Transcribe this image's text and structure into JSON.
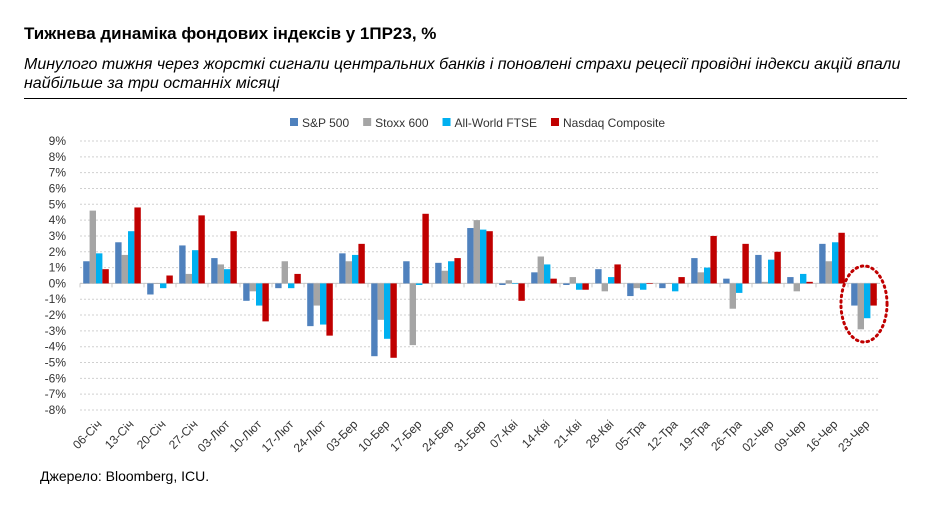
{
  "title": "Тижнева динаміка фондових індексів у 1ПР23, %",
  "subtitle": "Минулого тижня через жорсткі сигнали центральних банків і поновлені страхи рецесії провідні індекси акцій  впали найбільше за три останніх місяці",
  "source": "Джерело: Bloomberg, ICU.",
  "chart_data": {
    "type": "bar",
    "title": "",
    "xlabel": "",
    "ylabel": "",
    "ylim": [
      -8,
      9
    ],
    "y_ticks": [
      "9%",
      "8%",
      "7%",
      "6%",
      "5%",
      "4%",
      "3%",
      "2%",
      "1%",
      "0%",
      "-1%",
      "-2%",
      "-3%",
      "-4%",
      "-5%",
      "-6%",
      "-7%",
      "-8%"
    ],
    "grid": true,
    "legend_position": "top",
    "categories": [
      "06-Січ",
      "13-Січ",
      "20-Січ",
      "27-Січ",
      "03-Лют",
      "10-Лют",
      "17-Лют",
      "24-Лют",
      "03-Бер",
      "10-Бер",
      "17-Бер",
      "24-Бер",
      "31-Бер",
      "07-Кві",
      "14-Кві",
      "21-Кві",
      "28-Кві",
      "05-Тра",
      "12-Тра",
      "19-Тра",
      "26-Тра",
      "02-Чер",
      "09-Чер",
      "16-Чер",
      "23-Чер"
    ],
    "series": [
      {
        "name": "S&P 500",
        "color": "#4f81bd",
        "values": [
          1.4,
          2.6,
          -0.7,
          2.4,
          1.6,
          -1.1,
          -0.3,
          -2.7,
          1.9,
          -4.6,
          1.4,
          1.3,
          3.5,
          -0.1,
          0.7,
          -0.1,
          0.9,
          -0.8,
          -0.3,
          1.6,
          0.3,
          1.8,
          0.4,
          2.5,
          -1.4
        ]
      },
      {
        "name": "Stoxx 600",
        "color": "#a5a5a5",
        "values": [
          4.6,
          1.8,
          0.0,
          0.6,
          1.2,
          -0.5,
          1.4,
          -1.4,
          1.4,
          -2.3,
          -3.9,
          0.8,
          4.0,
          0.2,
          1.7,
          0.4,
          -0.5,
          -0.3,
          0.0,
          0.7,
          -1.6,
          0.1,
          -0.5,
          1.4,
          -2.9
        ]
      },
      {
        "name": "All-World FTSE",
        "color": "#00b0f0",
        "values": [
          1.9,
          3.3,
          -0.3,
          2.1,
          0.9,
          -1.4,
          -0.3,
          -2.6,
          1.8,
          -3.5,
          -0.1,
          1.4,
          3.4,
          0.0,
          1.2,
          -0.4,
          0.4,
          -0.4,
          -0.5,
          1.0,
          -0.6,
          1.5,
          0.6,
          2.6,
          -2.2
        ]
      },
      {
        "name": "Nasdaq Composite",
        "color": "#c00000",
        "values": [
          0.9,
          4.8,
          0.5,
          4.3,
          3.3,
          -2.4,
          0.6,
          -3.3,
          2.5,
          -4.7,
          4.4,
          1.6,
          3.3,
          -1.1,
          0.3,
          -0.4,
          1.2,
          0.0,
          0.4,
          3.0,
          2.5,
          2.0,
          0.1,
          3.2,
          -1.4
        ]
      }
    ],
    "annotation": "dotted red ellipse highlighting 23-Чер"
  }
}
